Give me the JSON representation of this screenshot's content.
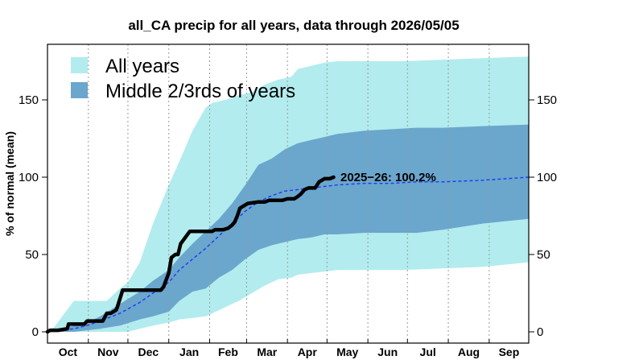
{
  "chart_data": {
    "type": "area",
    "title": "all_CA precip for all years, data through 2026/05/05",
    "ylabel": "% of normal (mean)",
    "xlabel": "",
    "ylim": [
      0,
      185
    ],
    "yticks": [
      0,
      50,
      100,
      150
    ],
    "months": [
      "Oct",
      "Nov",
      "Dec",
      "Jan",
      "Feb",
      "Mar",
      "Apr",
      "May",
      "Jun",
      "Jul",
      "Aug",
      "Sep"
    ],
    "x_unit": "day of water year (Oct 1 = 0)",
    "legend": [
      "All years",
      "Middle 2/3rds of years"
    ],
    "legend_position": "top-left",
    "grid": "vertical dotted lines at month boundaries",
    "colors": {
      "all_years": "#b2ecee",
      "middle": "#6ba6cd",
      "mean": "#1a3cf0",
      "current": "#000000"
    },
    "series": [
      {
        "name": "All years",
        "role": "band",
        "x": [
          0,
          5,
          20,
          30,
          45,
          55,
          61,
          70,
          80,
          92,
          100,
          110,
          120,
          125,
          135,
          145,
          155,
          165,
          175,
          185,
          190,
          200,
          210,
          220,
          235,
          250,
          270,
          300,
          330,
          365
        ],
        "upper": [
          0,
          3,
          20,
          20,
          20,
          28,
          32,
          45,
          70,
          95,
          110,
          130,
          145,
          148,
          150,
          153,
          155,
          160,
          163,
          165,
          170,
          172,
          174,
          175,
          175,
          175,
          175,
          176,
          177,
          178
        ],
        "lower": [
          0,
          0,
          0,
          0,
          0,
          0,
          0,
          2,
          4,
          6,
          8,
          9,
          10,
          12,
          16,
          20,
          25,
          30,
          34,
          35,
          37,
          38,
          39,
          40,
          40,
          40,
          40,
          41,
          42,
          45
        ]
      },
      {
        "name": "Middle 2/3rds of years",
        "role": "band",
        "x": [
          0,
          10,
          20,
          30,
          40,
          55,
          70,
          80,
          92,
          100,
          110,
          120,
          130,
          140,
          150,
          160,
          170,
          180,
          190,
          200,
          210,
          220,
          240,
          260,
          280,
          300,
          330,
          365
        ],
        "upper": [
          0,
          2,
          4,
          6,
          10,
          18,
          26,
          33,
          40,
          48,
          57,
          65,
          73,
          83,
          95,
          108,
          112,
          118,
          122,
          124,
          126,
          128,
          130,
          131,
          132,
          132,
          133,
          134
        ],
        "lower": [
          0,
          0,
          0,
          1,
          2,
          4,
          8,
          10,
          13,
          20,
          26,
          28,
          35,
          40,
          47,
          53,
          56,
          58,
          60,
          61,
          63,
          63,
          64,
          64,
          64,
          66,
          70,
          73
        ]
      },
      {
        "name": "Mean",
        "role": "line",
        "x": [
          0,
          10,
          20,
          30,
          40,
          55,
          70,
          80,
          92,
          100,
          110,
          120,
          130,
          140,
          150,
          160,
          170,
          180,
          190,
          200,
          210,
          220,
          240,
          260,
          280,
          300,
          330,
          365
        ],
        "values": [
          0,
          1,
          2,
          4,
          7,
          12,
          19,
          25,
          32,
          40,
          47,
          54,
          62,
          70,
          78,
          84,
          88,
          91,
          92,
          93,
          94,
          95,
          96,
          96,
          97,
          97,
          98,
          100
        ]
      },
      {
        "name": "2025-26",
        "role": "line",
        "x": [
          0,
          2,
          8,
          15,
          16,
          22,
          28,
          30,
          33,
          38,
          42,
          45,
          48,
          52,
          53,
          57,
          70,
          80,
          84,
          86,
          88,
          92,
          94,
          97,
          99,
          101,
          108,
          115,
          122,
          125,
          127,
          129,
          133,
          137,
          140,
          142,
          144,
          146,
          152,
          160,
          165,
          168,
          172,
          178,
          182,
          187,
          189,
          192,
          195,
          198,
          200,
          203,
          206,
          210,
          214,
          217
        ],
        "values": [
          0,
          1,
          1,
          2,
          5,
          5,
          5,
          7,
          7,
          7,
          7,
          12,
          12,
          14,
          16,
          27,
          27,
          27,
          27,
          27,
          29,
          38,
          48,
          50,
          50,
          57,
          65,
          65,
          65,
          65,
          66,
          66,
          66,
          67,
          69,
          71,
          75,
          80,
          83,
          84,
          84,
          85,
          85,
          85,
          86,
          86,
          87,
          89,
          92,
          93,
          93,
          93,
          97,
          99,
          99,
          100
        ]
      }
    ],
    "annotation": "2025−26: 100.2%"
  }
}
